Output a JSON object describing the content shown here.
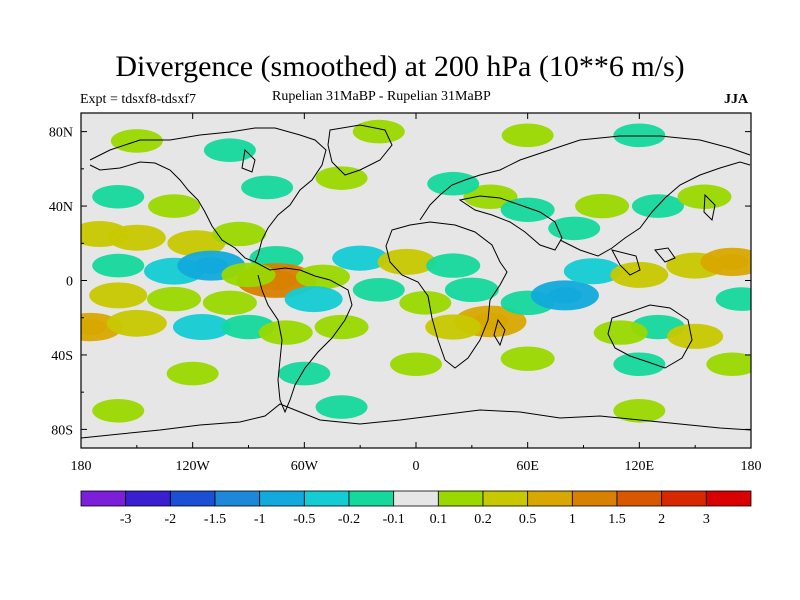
{
  "chart_data": {
    "type": "heatmap",
    "title": "Divergence (smoothed) at 200 hPa (10**6 m/s)",
    "subtitle": "Rupelian  31MaBP - Rupelian  31MaBP",
    "experiment_label": "Expt = tdsxf8-tdsxf7",
    "season": "JJA",
    "xlabel": "",
    "ylabel": "",
    "x_range": [
      -180,
      180
    ],
    "y_range": [
      -90,
      90
    ],
    "x_ticks": [
      {
        "value": -180,
        "label": "180"
      },
      {
        "value": -120,
        "label": "120W"
      },
      {
        "value": -60,
        "label": "60W"
      },
      {
        "value": 0,
        "label": "0"
      },
      {
        "value": 60,
        "label": "60E"
      },
      {
        "value": 120,
        "label": "120E"
      },
      {
        "value": 180,
        "label": "180"
      }
    ],
    "y_ticks": [
      {
        "value": 80,
        "label": "80N"
      },
      {
        "value": 40,
        "label": "40N"
      },
      {
        "value": 0,
        "label": "0"
      },
      {
        "value": -40,
        "label": "40S"
      },
      {
        "value": -80,
        "label": "80S"
      }
    ],
    "colorbar": {
      "colors": [
        "#7b1fd8",
        "#3a1fd0",
        "#1c4fd4",
        "#1e88d8",
        "#12aadc",
        "#14ccd4",
        "#14d89c",
        "#e6e6e6",
        "#9ad800",
        "#c8c800",
        "#d8a800",
        "#d88000",
        "#d85800",
        "#d82800",
        "#d80000"
      ],
      "labels": [
        "-3",
        "-2",
        "-1.5",
        "-1",
        "-0.5",
        "-0.2",
        "-0.1",
        "0.1",
        "0.2",
        "0.5",
        "1",
        "1.5",
        "2",
        "3"
      ]
    },
    "blobs": [
      {
        "lon": -118,
        "lat": 20,
        "value": 0.5
      },
      {
        "lon": -150,
        "lat": 23,
        "value": 0.5
      },
      {
        "lon": -170,
        "lat": 25,
        "value": 0.5
      },
      {
        "lon": -95,
        "lat": 25,
        "value": 0.3
      },
      {
        "lon": -130,
        "lat": 5,
        "value": -0.6
      },
      {
        "lon": -110,
        "lat": 8,
        "value": -1.0
      },
      {
        "lon": -160,
        "lat": 8,
        "value": -0.2
      },
      {
        "lon": -75,
        "lat": 12,
        "value": -0.3
      },
      {
        "lon": -75,
        "lat": 0,
        "value": 1.6
      },
      {
        "lon": -90,
        "lat": 3,
        "value": 0.3
      },
      {
        "lon": -50,
        "lat": 2,
        "value": 0.3
      },
      {
        "lon": -160,
        "lat": -8,
        "value": 0.5
      },
      {
        "lon": -130,
        "lat": -10,
        "value": 0.3
      },
      {
        "lon": -100,
        "lat": -12,
        "value": 0.3
      },
      {
        "lon": -55,
        "lat": -10,
        "value": -0.5
      },
      {
        "lon": -175,
        "lat": -25,
        "value": 0.8
      },
      {
        "lon": -150,
        "lat": -23,
        "value": 0.6
      },
      {
        "lon": -115,
        "lat": -25,
        "value": -0.5
      },
      {
        "lon": -90,
        "lat": -25,
        "value": -0.3
      },
      {
        "lon": -70,
        "lat": -28,
        "value": 0.3
      },
      {
        "lon": -40,
        "lat": -25,
        "value": 0.3
      },
      {
        "lon": -30,
        "lat": 12,
        "value": -0.4
      },
      {
        "lon": -5,
        "lat": 10,
        "value": 0.5
      },
      {
        "lon": 20,
        "lat": 8,
        "value": -0.3
      },
      {
        "lon": -20,
        "lat": -5,
        "value": -0.2
      },
      {
        "lon": 5,
        "lat": -12,
        "value": 0.2
      },
      {
        "lon": 30,
        "lat": -5,
        "value": -0.3
      },
      {
        "lon": 40,
        "lat": -22,
        "value": 1.2
      },
      {
        "lon": 20,
        "lat": -25,
        "value": 0.4
      },
      {
        "lon": 60,
        "lat": -12,
        "value": -0.3
      },
      {
        "lon": 80,
        "lat": -8,
        "value": -1.0
      },
      {
        "lon": 95,
        "lat": 5,
        "value": -0.5
      },
      {
        "lon": 120,
        "lat": 3,
        "value": 0.5
      },
      {
        "lon": 150,
        "lat": 8,
        "value": 0.5
      },
      {
        "lon": 170,
        "lat": 10,
        "value": 0.8
      },
      {
        "lon": 130,
        "lat": -25,
        "value": -0.3
      },
      {
        "lon": 150,
        "lat": -30,
        "value": 0.4
      },
      {
        "lon": 110,
        "lat": -28,
        "value": 0.3
      },
      {
        "lon": 175,
        "lat": -10,
        "value": -0.2
      },
      {
        "lon": 85,
        "lat": 28,
        "value": -0.2
      },
      {
        "lon": 100,
        "lat": 40,
        "value": 0.3
      },
      {
        "lon": 130,
        "lat": 40,
        "value": -0.2
      },
      {
        "lon": 155,
        "lat": 45,
        "value": 0.3
      },
      {
        "lon": 40,
        "lat": 45,
        "value": 0.3
      },
      {
        "lon": 60,
        "lat": 38,
        "value": -0.3
      },
      {
        "lon": 20,
        "lat": 52,
        "value": -0.2
      },
      {
        "lon": -40,
        "lat": 55,
        "value": 0.2
      },
      {
        "lon": -80,
        "lat": 50,
        "value": -0.2
      },
      {
        "lon": -130,
        "lat": 40,
        "value": 0.2
      },
      {
        "lon": -160,
        "lat": 45,
        "value": -0.2
      },
      {
        "lon": -100,
        "lat": 70,
        "value": -0.2
      },
      {
        "lon": -20,
        "lat": 80,
        "value": 0.2
      },
      {
        "lon": 60,
        "lat": 78,
        "value": 0.2
      },
      {
        "lon": 120,
        "lat": 78,
        "value": -0.2
      },
      {
        "lon": -150,
        "lat": 75,
        "value": 0.2
      },
      {
        "lon": -120,
        "lat": -50,
        "value": 0.2
      },
      {
        "lon": -60,
        "lat": -50,
        "value": -0.2
      },
      {
        "lon": 0,
        "lat": -45,
        "value": 0.2
      },
      {
        "lon": 60,
        "lat": -42,
        "value": 0.3
      },
      {
        "lon": 120,
        "lat": -45,
        "value": -0.2
      },
      {
        "lon": 170,
        "lat": -45,
        "value": 0.2
      },
      {
        "lon": -160,
        "lat": -70,
        "value": 0.2
      },
      {
        "lon": -40,
        "lat": -68,
        "value": -0.2
      },
      {
        "lon": 120,
        "lat": -70,
        "value": 0.2
      }
    ]
  }
}
